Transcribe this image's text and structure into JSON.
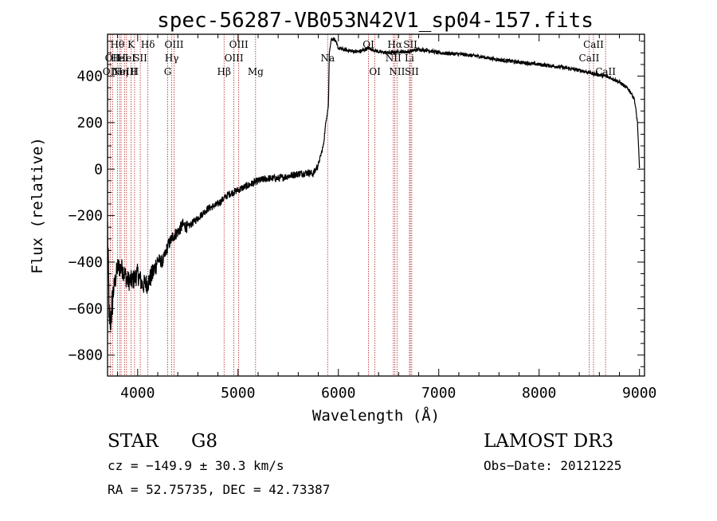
{
  "chart_data": {
    "type": "line",
    "title": "spec-56287-VB053N42V1_sp04-157.fits",
    "xlabel": "Wavelength (Å)",
    "ylabel": "Flux (relative)",
    "xlim": [
      3700,
      9050
    ],
    "ylim": [
      -890,
      580
    ],
    "xticks": [
      4000,
      5000,
      6000,
      7000,
      8000,
      9000
    ],
    "xtick_labels": [
      "4000",
      "5000",
      "6000",
      "7000",
      "8000",
      "9000"
    ],
    "yticks": [
      -800,
      -600,
      -400,
      -200,
      0,
      200,
      400
    ],
    "ytick_labels": [
      "−800",
      "−600",
      "−400",
      "−200",
      "0",
      "200",
      "400"
    ],
    "spectrum_anchors": [
      [
        3700,
        -250
      ],
      [
        3720,
        -700
      ],
      [
        3760,
        -520
      ],
      [
        3800,
        -420
      ],
      [
        3850,
        -430
      ],
      [
        3900,
        -480
      ],
      [
        3950,
        -480
      ],
      [
        4000,
        -450
      ],
      [
        4050,
        -500
      ],
      [
        4100,
        -490
      ],
      [
        4150,
        -450
      ],
      [
        4200,
        -390
      ],
      [
        4250,
        -400
      ],
      [
        4300,
        -330
      ],
      [
        4350,
        -290
      ],
      [
        4400,
        -270
      ],
      [
        4450,
        -240
      ],
      [
        4500,
        -250
      ],
      [
        4600,
        -210
      ],
      [
        4700,
        -170
      ],
      [
        4800,
        -150
      ],
      [
        4900,
        -110
      ],
      [
        5000,
        -90
      ],
      [
        5100,
        -70
      ],
      [
        5200,
        -50
      ],
      [
        5300,
        -40
      ],
      [
        5400,
        -40
      ],
      [
        5500,
        -30
      ],
      [
        5600,
        -20
      ],
      [
        5700,
        -15
      ],
      [
        5750,
        -20
      ],
      [
        5800,
        20
      ],
      [
        5850,
        100
      ],
      [
        5880,
        220
      ],
      [
        5900,
        270
      ],
      [
        5910,
        500
      ],
      [
        5930,
        560
      ],
      [
        5960,
        560
      ],
      [
        6000,
        520
      ],
      [
        6100,
        510
      ],
      [
        6200,
        505
      ],
      [
        6300,
        520
      ],
      [
        6400,
        505
      ],
      [
        6500,
        500
      ],
      [
        6600,
        505
      ],
      [
        6700,
        505
      ],
      [
        6800,
        515
      ],
      [
        6900,
        510
      ],
      [
        7000,
        500
      ],
      [
        7200,
        495
      ],
      [
        7400,
        485
      ],
      [
        7600,
        470
      ],
      [
        7800,
        460
      ],
      [
        8000,
        450
      ],
      [
        8200,
        440
      ],
      [
        8400,
        425
      ],
      [
        8550,
        410
      ],
      [
        8700,
        395
      ],
      [
        8800,
        375
      ],
      [
        8900,
        340
      ],
      [
        8950,
        300
      ],
      [
        8980,
        200
      ],
      [
        9000,
        0
      ]
    ],
    "lines": [
      {
        "w": 3727,
        "label": "OII",
        "row": 2
      },
      {
        "w": 3750,
        "label": "OII",
        "row": 1
      },
      {
        "w": 3798,
        "label": "Hθ",
        "row": 0
      },
      {
        "w": 3820,
        "label": "HeI",
        "row": 1
      },
      {
        "w": 3835,
        "label": "Hη",
        "row": 2
      },
      {
        "w": 3869,
        "label": "NeIII",
        "row": 2
      },
      {
        "w": 3889,
        "label": "HeI",
        "row": 1
      },
      {
        "w": 3934,
        "label": "K",
        "row": 0
      },
      {
        "w": 3969,
        "label": "H",
        "row": 2
      },
      {
        "w": 4026,
        "label": "SII",
        "row": 1
      },
      {
        "w": 4102,
        "label": "Hδ",
        "row": 0
      },
      {
        "w": 4300,
        "label": "G",
        "row": 2
      },
      {
        "w": 4340,
        "label": "Hγ",
        "row": 1
      },
      {
        "w": 4363,
        "label": "OIII",
        "row": 0
      },
      {
        "w": 4861,
        "label": "Hβ",
        "row": 2
      },
      {
        "w": 4959,
        "label": "OIII",
        "row": 1
      },
      {
        "w": 5007,
        "label": "OIII",
        "row": 0
      },
      {
        "w": 5175,
        "label": "Mg",
        "row": 2
      },
      {
        "w": 5893,
        "label": "Na",
        "row": 1
      },
      {
        "w": 6300,
        "label": "OI",
        "row": 0
      },
      {
        "w": 6364,
        "label": "OI",
        "row": 2
      },
      {
        "w": 6548,
        "label": "NII",
        "row": 1
      },
      {
        "w": 6563,
        "label": "Hα",
        "row": 0
      },
      {
        "w": 6584,
        "label": "NII",
        "row": 2
      },
      {
        "w": 6708,
        "label": "Li",
        "row": 1
      },
      {
        "w": 6717,
        "label": "SII",
        "row": 0
      },
      {
        "w": 6731,
        "label": "SII",
        "row": 2
      },
      {
        "w": 8498,
        "label": "CaII",
        "row": 1
      },
      {
        "w": 8542,
        "label": "CaII",
        "row": 0
      },
      {
        "w": 8662,
        "label": "CaII",
        "row": 2
      }
    ]
  },
  "info": {
    "object_class": "STAR",
    "subclass": "G8",
    "survey": "LAMOST DR3",
    "cz": "cz = −149.9 ± 30.3 km/s",
    "obs_date": "Obs−Date: 20121225",
    "radec": "RA =  52.75735, DEC =  42.73387"
  },
  "colors": {
    "spectrum": "#000000",
    "line_markers": "#b22222",
    "axes": "#000000"
  }
}
